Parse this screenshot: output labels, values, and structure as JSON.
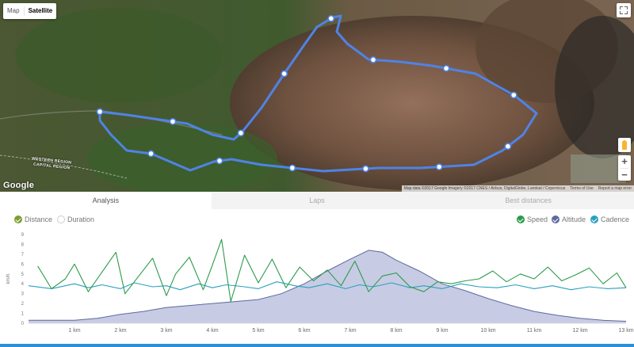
{
  "map": {
    "type_options": [
      {
        "label": "Map",
        "active": false
      },
      {
        "label": "Satellite",
        "active": true
      }
    ],
    "logo": "Google",
    "region_label_1": "WESTERN REGION",
    "region_label_2": "CAPITAL REGION",
    "zoom_in": "+",
    "zoom_out": "−",
    "attribution": {
      "data": "Map data ©2017 Google Imagery ©2017 CNES / Airbus, DigitalGlobe, Landsat / Copernicus",
      "terms": "Terms of Use",
      "report": "Report a map error"
    },
    "route_color": "#4f83e6",
    "marker_count": 14
  },
  "tabs": [
    {
      "label": "Analysis",
      "active": true
    },
    {
      "label": "Laps",
      "active": false
    },
    {
      "label": "Best distances",
      "active": false
    }
  ],
  "analysis": {
    "x_axis_options": [
      {
        "label": "Distance",
        "checked": true,
        "color": "#7aa032"
      },
      {
        "label": "Duration",
        "checked": false,
        "color": "#ffffff"
      }
    ],
    "metrics": [
      {
        "label": "Speed",
        "checked": true,
        "color": "#2a9b4a"
      },
      {
        "label": "Altitude",
        "checked": true,
        "color": "#5c6a9e"
      },
      {
        "label": "Cadence",
        "checked": true,
        "color": "#2aa0c0"
      }
    ]
  },
  "chart_data": {
    "type": "line",
    "xlabel": "",
    "ylabel": "km/h",
    "x_unit": "km",
    "x_ticks": [
      "1 km",
      "2 km",
      "3 km",
      "4 km",
      "5 km",
      "6 km",
      "7 km",
      "8 km",
      "9 km",
      "10 km",
      "11 km",
      "12 km",
      "13 km"
    ],
    "y_ticks": [
      "0",
      "1",
      "2",
      "3",
      "4",
      "5",
      "6",
      "7",
      "8",
      "9"
    ],
    "xlim": [
      0,
      13
    ],
    "ylim": [
      0,
      9
    ],
    "grid": false,
    "series": [
      {
        "name": "Altitude",
        "style": "area",
        "color": "#5c6a9e",
        "fill": "#c8cbe4",
        "x": [
          0,
          1,
          1.5,
          2,
          2.5,
          3,
          3.5,
          4,
          4.5,
          5,
          5.5,
          6,
          6.5,
          7,
          7.4,
          7.7,
          8,
          8.5,
          9,
          9.5,
          10,
          10.5,
          11,
          11.5,
          12,
          12.5,
          13
        ],
        "y": [
          0.3,
          0.3,
          0.5,
          0.9,
          1.2,
          1.6,
          1.8,
          2.0,
          2.2,
          2.4,
          3.0,
          4.0,
          5.3,
          6.5,
          7.4,
          7.2,
          6.4,
          5.3,
          4.0,
          3.3,
          2.5,
          1.8,
          1.2,
          0.8,
          0.5,
          0.3,
          0.2
        ]
      },
      {
        "name": "Cadence",
        "style": "line",
        "color": "#2aa0c0",
        "x": [
          0,
          0.5,
          1,
          1.3,
          1.6,
          2,
          2.3,
          2.7,
          3,
          3.3,
          3.7,
          4,
          4.3,
          4.7,
          5,
          5.4,
          5.8,
          6.1,
          6.5,
          6.9,
          7.2,
          7.5,
          7.9,
          8.3,
          8.6,
          9,
          9.4,
          9.8,
          10.2,
          10.6,
          11,
          11.4,
          11.8,
          12.2,
          12.6,
          13
        ],
        "y": [
          3.8,
          3.5,
          4.0,
          3.6,
          3.9,
          3.5,
          4.1,
          3.7,
          3.8,
          3.4,
          4.0,
          3.6,
          3.9,
          3.7,
          3.5,
          4.2,
          3.8,
          3.6,
          4.0,
          3.5,
          3.9,
          3.7,
          4.1,
          3.6,
          3.8,
          3.5,
          4.0,
          3.7,
          3.6,
          3.9,
          3.5,
          3.8,
          3.4,
          3.7,
          3.5,
          3.6
        ]
      },
      {
        "name": "Speed",
        "style": "line",
        "color": "#2a9b4a",
        "x": [
          0.2,
          0.5,
          0.8,
          1.0,
          1.3,
          1.6,
          1.9,
          2.1,
          2.4,
          2.7,
          3.0,
          3.2,
          3.5,
          3.8,
          4.0,
          4.2,
          4.4,
          4.7,
          5.0,
          5.3,
          5.6,
          5.9,
          6.2,
          6.5,
          6.8,
          7.1,
          7.4,
          7.7,
          8.0,
          8.3,
          8.6,
          8.9,
          9.2,
          9.5,
          9.8,
          10.1,
          10.4,
          10.7,
          11.0,
          11.3,
          11.6,
          11.9,
          12.2,
          12.5,
          12.8,
          13.0
        ],
        "y": [
          5.8,
          3.5,
          4.5,
          6.0,
          3.2,
          5.2,
          7.2,
          3.0,
          4.8,
          6.6,
          2.8,
          5.0,
          6.7,
          3.4,
          5.9,
          8.5,
          2.2,
          6.9,
          4.1,
          6.5,
          3.6,
          5.7,
          4.3,
          5.4,
          3.8,
          6.3,
          3.2,
          4.8,
          5.1,
          3.7,
          3.2,
          4.2,
          4.0,
          4.3,
          4.5,
          5.3,
          4.2,
          5.0,
          4.5,
          5.7,
          4.3,
          4.9,
          5.6,
          4.0,
          5.1,
          3.6
        ]
      }
    ]
  }
}
